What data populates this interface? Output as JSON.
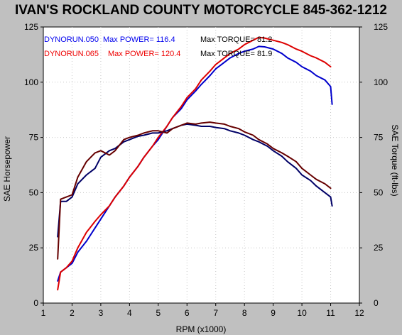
{
  "chart_data": {
    "type": "line",
    "title": "IVAN'S ROCKLAND COUNTY MOTORCYCLE 845-362-1212",
    "xlabel": "RPM (x1000)",
    "ylabel_left": "SAE Horsepower",
    "ylabel_right": "SAE Torque (ft-lbs)",
    "xlim": [
      1,
      12
    ],
    "ylim": [
      0,
      125
    ],
    "x_ticks": [
      1,
      2,
      3,
      4,
      5,
      6,
      7,
      8,
      9,
      10,
      11,
      12
    ],
    "y_ticks": [
      0,
      25,
      50,
      75,
      100,
      125
    ],
    "grid": true,
    "legend": [
      {
        "run": "DYNORUN.050",
        "power_label": "Max POWER= 116.4",
        "torque_label": "Max TORQUE= 81.2",
        "color": "#0000ee"
      },
      {
        "run": "DYNORUN.065",
        "power_label": "Max POWER= 120.4",
        "torque_label": "Max TORQUE= 81.9",
        "color": "#ee0000"
      }
    ],
    "series": [
      {
        "run": "DYNORUN.050",
        "measure": "power",
        "color": "#0000cc",
        "x": [
          1.5,
          1.6,
          1.8,
          2.0,
          2.2,
          2.5,
          2.8,
          3.0,
          3.3,
          3.5,
          3.8,
          4.0,
          4.3,
          4.5,
          4.8,
          5.0,
          5.3,
          5.5,
          5.8,
          6.0,
          6.3,
          6.5,
          6.8,
          7.0,
          7.3,
          7.5,
          7.8,
          8.0,
          8.3,
          8.5,
          8.7,
          9.0,
          9.3,
          9.5,
          9.8,
          10.0,
          10.3,
          10.5,
          10.8,
          11.0,
          11.05
        ],
        "y": [
          10,
          14,
          16,
          18,
          23,
          28,
          34,
          38,
          44,
          48,
          53,
          57,
          62,
          66,
          71,
          74,
          80,
          84,
          88,
          92,
          96,
          99,
          103,
          106,
          109,
          111,
          113,
          114,
          115,
          116.2,
          116,
          115,
          113,
          111,
          109,
          107,
          105,
          103,
          101,
          98,
          90
        ]
      },
      {
        "run": "DYNORUN.065",
        "measure": "power",
        "color": "#dd0000",
        "x": [
          1.5,
          1.6,
          1.8,
          2.0,
          2.2,
          2.5,
          2.8,
          3.0,
          3.3,
          3.5,
          3.8,
          4.0,
          4.3,
          4.5,
          4.8,
          5.0,
          5.3,
          5.5,
          5.8,
          6.0,
          6.3,
          6.5,
          6.8,
          7.0,
          7.3,
          7.5,
          7.8,
          8.0,
          8.3,
          8.5,
          8.7,
          9.0,
          9.3,
          9.5,
          9.8,
          10.0,
          10.3,
          10.5,
          10.8,
          11.0
        ],
        "y": [
          6,
          14,
          16,
          19,
          25,
          32,
          37,
          40,
          44,
          48,
          53,
          57,
          62,
          66,
          71,
          75,
          80,
          84,
          89,
          93,
          97,
          101,
          105,
          108,
          111,
          113,
          115,
          117,
          119,
          120.3,
          120,
          119,
          118,
          117,
          115,
          114,
          112,
          111,
          109,
          107
        ]
      },
      {
        "run": "DYNORUN.050",
        "measure": "torque",
        "color": "#000066",
        "x": [
          1.5,
          1.6,
          1.8,
          2.0,
          2.2,
          2.5,
          2.8,
          3.0,
          3.3,
          3.5,
          3.8,
          4.0,
          4.3,
          4.5,
          4.8,
          5.0,
          5.3,
          5.5,
          5.8,
          6.0,
          6.3,
          6.5,
          6.8,
          7.0,
          7.3,
          7.5,
          7.8,
          8.0,
          8.3,
          8.5,
          8.8,
          9.0,
          9.3,
          9.5,
          9.8,
          10.0,
          10.3,
          10.5,
          10.8,
          11.0,
          11.05
        ],
        "y": [
          30,
          46,
          46,
          48,
          54,
          58,
          61,
          66,
          69,
          70,
          73,
          74,
          75.5,
          76,
          77,
          77,
          78,
          79,
          80.5,
          81,
          80.5,
          80,
          80,
          79.5,
          79,
          78,
          77,
          76,
          74,
          73,
          71,
          69,
          66.5,
          64,
          61,
          58,
          55.5,
          53,
          50,
          48,
          44
        ]
      },
      {
        "run": "DYNORUN.065",
        "measure": "torque",
        "color": "#660000",
        "x": [
          1.5,
          1.6,
          1.8,
          2.0,
          2.2,
          2.5,
          2.8,
          3.0,
          3.3,
          3.5,
          3.8,
          4.0,
          4.3,
          4.5,
          4.8,
          5.0,
          5.3,
          5.5,
          5.8,
          6.0,
          6.3,
          6.5,
          6.8,
          7.0,
          7.3,
          7.5,
          7.8,
          8.0,
          8.3,
          8.5,
          8.8,
          9.0,
          9.3,
          9.5,
          9.8,
          10.0,
          10.3,
          10.5,
          10.8,
          11.0
        ],
        "y": [
          20,
          47,
          48,
          49,
          57,
          64,
          68,
          69,
          67,
          69,
          74,
          75,
          76,
          77,
          78,
          78,
          77,
          79,
          80.5,
          81.5,
          81,
          81.5,
          81.9,
          81.5,
          81,
          80,
          79,
          77.5,
          76,
          74,
          72,
          70,
          68,
          66.5,
          64,
          61,
          58,
          56,
          54,
          52
        ]
      }
    ]
  }
}
